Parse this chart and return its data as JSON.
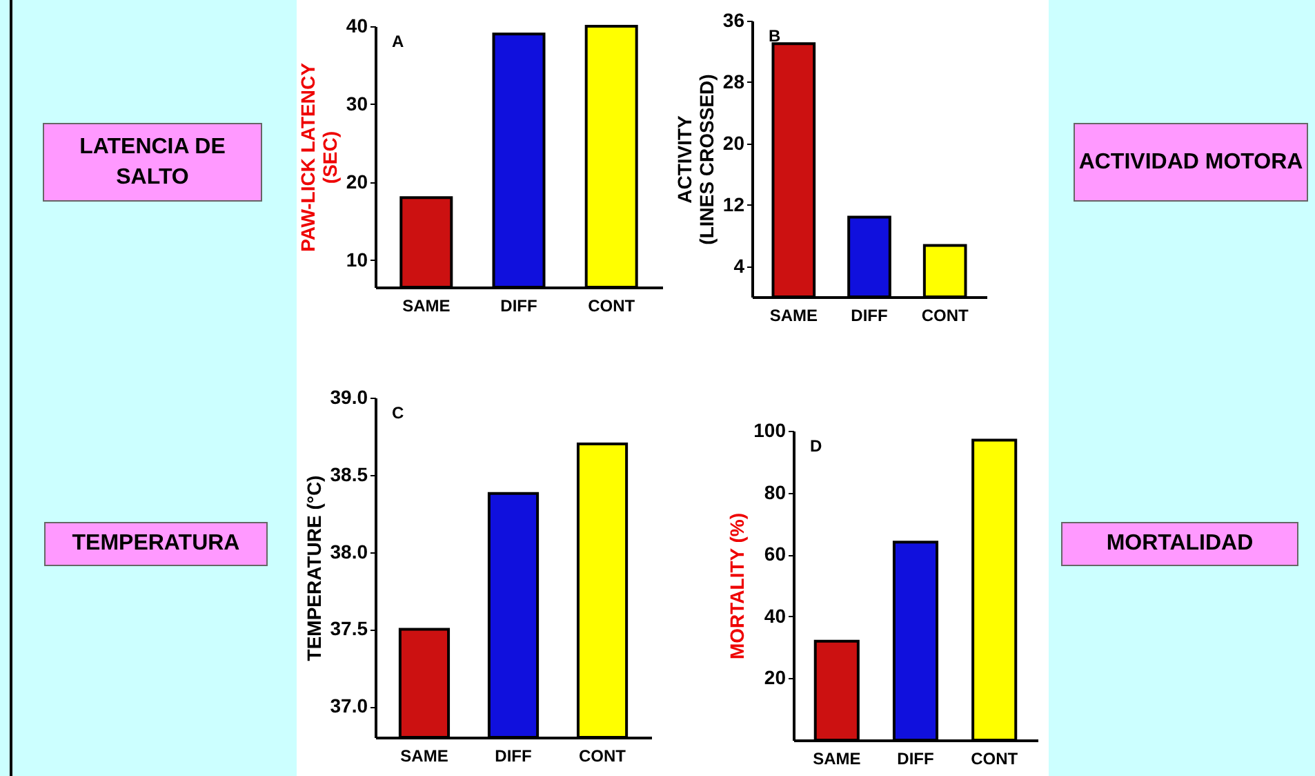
{
  "chart_data": [
    {
      "type": "bar",
      "ylabel": "PAW-LICK LATENCY\n(SEC)",
      "categories": [
        "SAME",
        "DIFF",
        "CONT"
      ],
      "values": [
        18,
        39,
        40
      ],
      "colors": [
        "#cc1111",
        "#1010dd",
        "#ffff00"
      ],
      "ylim": [
        6.5,
        40
      ],
      "yticks": [
        10,
        20,
        30,
        40
      ],
      "annotations": [
        "A",
        "LATENCIA DE SALTO"
      ]
    },
    {
      "type": "bar",
      "ylabel": "ACTIVITY\n(LINES CROSSED)",
      "categories": [
        "SAME",
        "DIFF",
        "CONT"
      ],
      "values": [
        33,
        10.4,
        6.7
      ],
      "colors": [
        "#cc1111",
        "#1010dd",
        "#ffff00"
      ],
      "ylim": [
        0,
        36
      ],
      "yticks": [
        4,
        12,
        20,
        28,
        36
      ],
      "annotations": [
        "B",
        "ACTIVIDAD MOTORA"
      ]
    },
    {
      "type": "bar",
      "ylabel": "TEMPERATURE (°C)",
      "categories": [
        "SAME",
        "DIFF",
        "CONT"
      ],
      "values": [
        37.5,
        38.38,
        38.7
      ],
      "colors": [
        "#cc1111",
        "#1010dd",
        "#ffff00"
      ],
      "ylim": [
        36.8,
        39
      ],
      "yticks": [
        {
          "value": 37,
          "label": "37.0"
        },
        {
          "value": 37.5,
          "label": "37.5"
        },
        {
          "value": 38,
          "label": "38.0"
        },
        {
          "value": 38.5,
          "label": "38.5"
        },
        {
          "value": 39,
          "label": "39.0"
        }
      ],
      "annotations": [
        "C",
        "TEMPERATURA"
      ]
    },
    {
      "type": "bar",
      "ylabel": "MORTALITY (%)",
      "categories": [
        "SAME",
        "DIFF",
        "CONT"
      ],
      "values": [
        32,
        64,
        97
      ],
      "colors": [
        "#cc1111",
        "#1010dd",
        "#ffff00"
      ],
      "ylim": [
        0,
        100
      ],
      "yticks": [
        20,
        40,
        60,
        80,
        100
      ],
      "annotations": [
        "D",
        "MORTALIDAD"
      ]
    }
  ]
}
